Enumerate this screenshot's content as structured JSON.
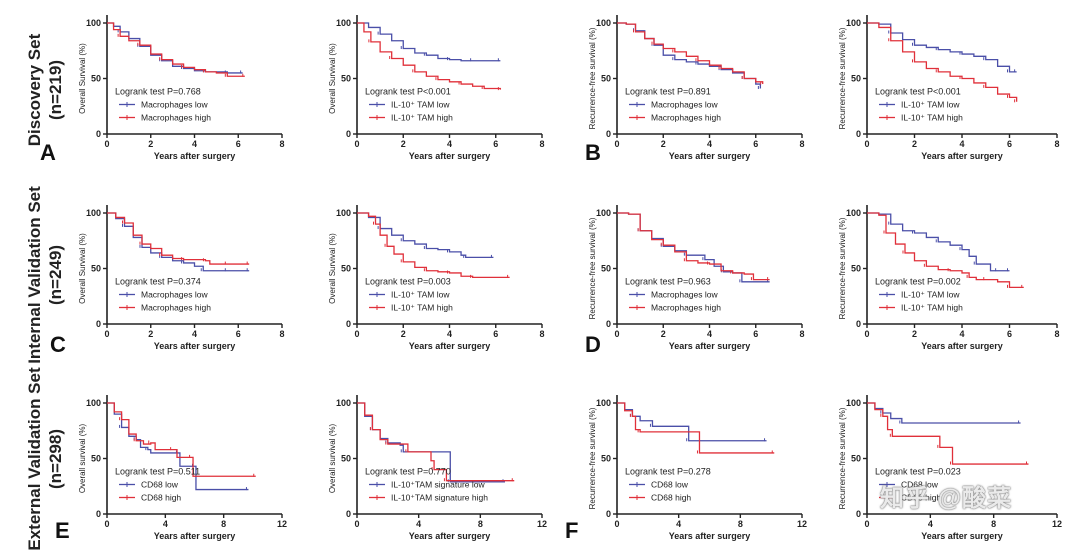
{
  "figure": {
    "row_labels": [
      {
        "line1": "Discovery Set",
        "line2": "(n=219)"
      },
      {
        "line1": "Internal Validation Set",
        "line2": "(n=249)"
      },
      {
        "line1": "External Validation Set",
        "line2": "(n=298)"
      }
    ],
    "panel_letters": [
      "A",
      "B",
      "C",
      "D",
      "E",
      "F"
    ],
    "watermark": "知乎 @酸菜",
    "colors": {
      "low": "#4a4fa8",
      "high": "#e0303a",
      "axis": "#222222"
    }
  },
  "chart_data": [
    {
      "type": "line",
      "id": "A1",
      "title": "",
      "xlabel": "Years after surgery",
      "ylabel": "Overall Survival (%)",
      "xlim": [
        0,
        8
      ],
      "xticks": [
        0,
        2,
        4,
        6,
        8
      ],
      "ylim": [
        0,
        100
      ],
      "yticks": [
        0,
        50,
        100
      ],
      "annotation": "Logrank test P=0.768",
      "series": [
        {
          "name": "Macrophages low",
          "color": "#4a4fa8",
          "x": [
            0,
            0.3,
            0.6,
            1.0,
            1.5,
            2.0,
            2.5,
            3.0,
            3.5,
            4.0,
            4.5,
            5.0,
            5.5,
            6.2
          ],
          "y": [
            100,
            97,
            92,
            86,
            79,
            71,
            66,
            61,
            59,
            57,
            56,
            56,
            55,
            55
          ]
        },
        {
          "name": "Macrophages high",
          "color": "#e0303a",
          "x": [
            0,
            0.3,
            0.6,
            1.0,
            1.5,
            2.0,
            2.5,
            3.0,
            3.5,
            4.0,
            4.5,
            5.0,
            5.5,
            6.3
          ],
          "y": [
            100,
            94,
            88,
            84,
            80,
            72,
            67,
            63,
            60,
            58,
            56,
            55,
            52,
            52
          ]
        }
      ]
    },
    {
      "type": "line",
      "id": "A2",
      "title": "",
      "xlabel": "Years after surgery",
      "ylabel": "Overall Survival (%)",
      "xlim": [
        0,
        8
      ],
      "xticks": [
        0,
        2,
        4,
        6,
        8
      ],
      "ylim": [
        0,
        100
      ],
      "yticks": [
        0,
        50,
        100
      ],
      "annotation": "Logrank test P<0.001",
      "series": [
        {
          "name": "IL-10⁺ TAM low",
          "color": "#4a4fa8",
          "x": [
            0,
            0.5,
            1.0,
            1.5,
            2.0,
            2.5,
            3.0,
            3.5,
            4.0,
            4.5,
            5.0,
            5.5,
            6.2
          ],
          "y": [
            100,
            96,
            90,
            84,
            77,
            73,
            71,
            68,
            67,
            66,
            66,
            66,
            66
          ]
        },
        {
          "name": "IL-10⁺ TAM high",
          "color": "#e0303a",
          "x": [
            0,
            0.3,
            0.6,
            1.0,
            1.5,
            2.0,
            2.5,
            3.0,
            3.5,
            4.0,
            4.5,
            5.0,
            5.5,
            6.2
          ],
          "y": [
            100,
            92,
            83,
            74,
            68,
            62,
            56,
            52,
            49,
            47,
            45,
            43,
            41,
            40
          ]
        }
      ]
    },
    {
      "type": "line",
      "id": "B1",
      "title": "",
      "xlabel": "Years after surgery",
      "ylabel": "Recurrence-free survival (%)",
      "xlim": [
        0,
        8
      ],
      "xticks": [
        0,
        2,
        4,
        6,
        8
      ],
      "ylim": [
        0,
        100
      ],
      "yticks": [
        0,
        50,
        100
      ],
      "annotation": "Logrank test P=0.891",
      "series": [
        {
          "name": "Macrophages low",
          "color": "#4a4fa8",
          "x": [
            0,
            0.4,
            0.8,
            1.2,
            1.6,
            2.0,
            2.5,
            3.0,
            3.5,
            4.0,
            4.5,
            5.0,
            5.5,
            6.0,
            6.2
          ],
          "y": [
            100,
            99,
            93,
            86,
            80,
            71,
            67,
            65,
            63,
            61,
            58,
            55,
            50,
            45,
            41
          ]
        },
        {
          "name": "Macrophages high",
          "color": "#e0303a",
          "x": [
            0,
            0.4,
            0.8,
            1.2,
            1.6,
            2.0,
            2.5,
            3.0,
            3.5,
            4.0,
            4.5,
            5.0,
            5.5,
            6.0,
            6.3
          ],
          "y": [
            100,
            99,
            92,
            86,
            81,
            77,
            74,
            70,
            66,
            62,
            59,
            56,
            50,
            47,
            45
          ]
        }
      ]
    },
    {
      "type": "line",
      "id": "B2",
      "title": "",
      "xlabel": "Years after surgery",
      "ylabel": "Recurrence-free survival (%)",
      "xlim": [
        0,
        8
      ],
      "xticks": [
        0,
        2,
        4,
        6,
        8
      ],
      "ylim": [
        0,
        100
      ],
      "yticks": [
        0,
        50,
        100
      ],
      "annotation": "Logrank test P<0.001",
      "series": [
        {
          "name": "IL-10⁺ TAM low",
          "color": "#4a4fa8",
          "x": [
            0,
            0.5,
            1.0,
            1.5,
            2.0,
            2.5,
            3.0,
            3.5,
            4.0,
            4.5,
            5.0,
            5.5,
            6.0,
            6.3
          ],
          "y": [
            100,
            99,
            91,
            85,
            80,
            78,
            76,
            74,
            72,
            70,
            67,
            61,
            56,
            56
          ]
        },
        {
          "name": "IL-10⁺ TAM high",
          "color": "#e0303a",
          "x": [
            0,
            0.5,
            1.0,
            1.5,
            2.0,
            2.5,
            3.0,
            3.5,
            4.0,
            4.5,
            5.0,
            5.5,
            6.0,
            6.3
          ],
          "y": [
            100,
            96,
            84,
            74,
            65,
            59,
            56,
            52,
            50,
            46,
            42,
            36,
            33,
            29
          ]
        }
      ]
    },
    {
      "type": "line",
      "id": "C1",
      "title": "",
      "xlabel": "Years after surgery",
      "ylabel": "Overall Survival (%)",
      "xlim": [
        0,
        8
      ],
      "xticks": [
        0,
        2,
        4,
        6,
        8
      ],
      "ylim": [
        0,
        100
      ],
      "yticks": [
        0,
        50,
        100
      ],
      "annotation": "Logrank test P=0.374",
      "series": [
        {
          "name": "Macrophages low",
          "color": "#4a4fa8",
          "x": [
            0,
            0.4,
            0.8,
            1.2,
            1.6,
            2.0,
            2.5,
            3.0,
            3.5,
            4.0,
            4.4,
            5.0,
            5.5,
            6.5
          ],
          "y": [
            100,
            95,
            88,
            78,
            69,
            64,
            60,
            57,
            55,
            52,
            48,
            48,
            48,
            48
          ]
        },
        {
          "name": "Macrophages high",
          "color": "#e0303a",
          "x": [
            0,
            0.4,
            0.8,
            1.2,
            1.6,
            2.0,
            2.5,
            3.0,
            3.5,
            4.0,
            4.5,
            4.7,
            5.5,
            6.5
          ],
          "y": [
            100,
            96,
            91,
            80,
            72,
            68,
            62,
            59,
            58,
            58,
            57,
            54,
            54,
            54
          ]
        }
      ]
    },
    {
      "type": "line",
      "id": "C2",
      "title": "",
      "xlabel": "Years after surgery",
      "ylabel": "Overall Survival (%)",
      "xlim": [
        0,
        8
      ],
      "xticks": [
        0,
        2,
        4,
        6,
        8
      ],
      "ylim": [
        0,
        100
      ],
      "yticks": [
        0,
        50,
        100
      ],
      "annotation": "Logrank test P=0.003",
      "series": [
        {
          "name": "IL-10⁺ TAM low",
          "color": "#4a4fa8",
          "x": [
            0,
            0.5,
            1.0,
            1.5,
            2.0,
            2.5,
            3.0,
            3.5,
            4.0,
            4.5,
            4.7,
            5.5,
            5.9
          ],
          "y": [
            100,
            96,
            86,
            80,
            75,
            72,
            68,
            67,
            65,
            62,
            60,
            60,
            60
          ]
        },
        {
          "name": "IL-10⁺ TAM high",
          "color": "#e0303a",
          "x": [
            0,
            0.5,
            0.8,
            1.0,
            1.3,
            1.6,
            2.0,
            2.5,
            3.0,
            3.5,
            4.0,
            4.5,
            5.0,
            6.0,
            6.6
          ],
          "y": [
            100,
            97,
            90,
            80,
            70,
            63,
            56,
            51,
            48,
            47,
            46,
            43,
            42,
            42,
            42
          ]
        }
      ]
    },
    {
      "type": "line",
      "id": "D1",
      "title": "",
      "xlabel": "Years after surgery",
      "ylabel": "Recurrence-free survival (%)",
      "xlim": [
        0,
        8
      ],
      "xticks": [
        0,
        2,
        4,
        6,
        8
      ],
      "ylim": [
        0,
        100
      ],
      "yticks": [
        0,
        50,
        100
      ],
      "annotation": "Logrank test P=0.963",
      "series": [
        {
          "name": "Macrophages low",
          "color": "#4a4fa8",
          "x": [
            0,
            0.5,
            1.0,
            1.5,
            2.0,
            2.5,
            3.0,
            3.4,
            3.8,
            4.2,
            4.6,
            5.0,
            5.4,
            6.0,
            6.6
          ],
          "y": [
            100,
            99,
            84,
            77,
            70,
            66,
            62,
            62,
            58,
            52,
            47,
            46,
            38,
            38,
            38
          ]
        },
        {
          "name": "Macrophages high",
          "color": "#e0303a",
          "x": [
            0,
            0.5,
            1.0,
            1.5,
            2.0,
            2.5,
            3.0,
            3.5,
            4.0,
            4.5,
            5.0,
            5.5,
            5.9,
            6.6
          ],
          "y": [
            100,
            99,
            84,
            76,
            71,
            65,
            57,
            55,
            54,
            48,
            46,
            45,
            40,
            40
          ]
        }
      ]
    },
    {
      "type": "line",
      "id": "D2",
      "title": "",
      "xlabel": "Years after surgery",
      "ylabel": "Recurrence-free survival (%)",
      "xlim": [
        0,
        8
      ],
      "xticks": [
        0,
        2,
        4,
        6,
        8
      ],
      "ylim": [
        0,
        100
      ],
      "yticks": [
        0,
        50,
        100
      ],
      "annotation": "Logrank test P=0.002",
      "series": [
        {
          "name": "IL-10⁺ TAM low",
          "color": "#4a4fa8",
          "x": [
            0,
            0.5,
            1.0,
            1.5,
            2.0,
            2.5,
            3.0,
            3.5,
            4.0,
            4.3,
            4.6,
            5.2,
            5.5,
            6.0
          ],
          "y": [
            100,
            99,
            90,
            84,
            82,
            78,
            74,
            71,
            67,
            61,
            54,
            48,
            48,
            48
          ]
        },
        {
          "name": "IL-10⁺ TAM high",
          "color": "#e0303a",
          "x": [
            0,
            0.5,
            0.8,
            1.2,
            1.6,
            2.0,
            2.5,
            3.0,
            3.5,
            4.0,
            4.3,
            4.6,
            5.0,
            5.5,
            6.0,
            6.6
          ],
          "y": [
            100,
            98,
            82,
            72,
            64,
            57,
            52,
            49,
            48,
            46,
            42,
            40,
            40,
            38,
            33,
            33
          ]
        }
      ]
    },
    {
      "type": "line",
      "id": "E1",
      "title": "",
      "xlabel": "Years after surgery",
      "ylabel": "Overall survival (%)",
      "xlim": [
        0,
        12
      ],
      "xticks": [
        0,
        4,
        8,
        12
      ],
      "ylim": [
        0,
        100
      ],
      "yticks": [
        0,
        50,
        100
      ],
      "annotation": "Logrank test P=0.511",
      "series": [
        {
          "name": "CD68 low",
          "color": "#4a4fa8",
          "x": [
            0,
            0.5,
            1.0,
            1.5,
            2.0,
            2.3,
            2.8,
            3.0,
            4.9,
            5.0,
            6.0,
            6.1,
            9.7
          ],
          "y": [
            100,
            90,
            78,
            70,
            67,
            60,
            58,
            55,
            55,
            43,
            43,
            22,
            22
          ]
        },
        {
          "name": "CD68 high",
          "color": "#e0303a",
          "x": [
            0,
            0.5,
            1.0,
            1.5,
            2.0,
            2.5,
            3.0,
            3.3,
            4.5,
            4.8,
            5.8,
            5.9,
            10.2
          ],
          "y": [
            100,
            92,
            85,
            72,
            66,
            63,
            64,
            58,
            58,
            51,
            51,
            34,
            34
          ]
        }
      ]
    },
    {
      "type": "line",
      "id": "E2",
      "title": "",
      "xlabel": "Years after surgery",
      "ylabel": "Overall survival (%)",
      "xlim": [
        0,
        12
      ],
      "xticks": [
        0,
        4,
        8,
        12
      ],
      "ylim": [
        0,
        100
      ],
      "yticks": [
        0,
        50,
        100
      ],
      "annotation": "Logrank test P=0.770",
      "series": [
        {
          "name": "IL-10⁺TAM signature low",
          "color": "#4a4fa8",
          "x": [
            0,
            0.5,
            1.0,
            1.5,
            2.0,
            2.8,
            3.0,
            6.0,
            6.05,
            9.6
          ],
          "y": [
            100,
            88,
            76,
            68,
            64,
            62,
            56,
            56,
            29,
            29
          ]
        },
        {
          "name": "IL-10⁺TAM signature high",
          "color": "#e0303a",
          "x": [
            0,
            0.5,
            1.0,
            1.5,
            2.0,
            3.0,
            3.3,
            4.8,
            5.0,
            5.7,
            5.8,
            10.2
          ],
          "y": [
            100,
            89,
            76,
            67,
            63,
            63,
            56,
            48,
            40,
            40,
            30,
            30
          ]
        }
      ]
    },
    {
      "type": "line",
      "id": "F1",
      "title": "",
      "xlabel": "Years after surgery",
      "ylabel": "Recurrence-free survival (%)",
      "xlim": [
        0,
        12
      ],
      "xticks": [
        0,
        4,
        8,
        12
      ],
      "ylim": [
        0,
        100
      ],
      "yticks": [
        0,
        50,
        100
      ],
      "annotation": "Logrank test P=0.278",
      "series": [
        {
          "name": "CD68 low",
          "color": "#4a4fa8",
          "x": [
            0,
            0.5,
            1.0,
            1.5,
            2.3,
            4.6,
            4.65,
            9.7
          ],
          "y": [
            100,
            94,
            88,
            84,
            79,
            79,
            66,
            66
          ]
        },
        {
          "name": "CD68 high",
          "color": "#e0303a",
          "x": [
            0,
            0.5,
            1.0,
            1.2,
            1.5,
            5.3,
            5.35,
            10.2
          ],
          "y": [
            100,
            93,
            88,
            76,
            74,
            74,
            55,
            55
          ]
        }
      ]
    },
    {
      "type": "line",
      "id": "F2",
      "title": "",
      "xlabel": "Years after surgery",
      "ylabel": "Recurrence-free survival (%)",
      "xlim": [
        0,
        12
      ],
      "xticks": [
        0,
        4,
        8,
        12
      ],
      "ylim": [
        0,
        100
      ],
      "yticks": [
        0,
        50,
        100
      ],
      "annotation": "Logrank test P=0.023",
      "series": [
        {
          "name": "CD68 low",
          "color": "#4a4fa8",
          "x": [
            0,
            0.5,
            1.0,
            1.5,
            2.2,
            9.7
          ],
          "y": [
            100,
            95,
            91,
            86,
            82,
            82
          ]
        },
        {
          "name": "CD68 high",
          "color": "#e0303a",
          "x": [
            0,
            0.5,
            1.0,
            1.3,
            1.6,
            4.5,
            4.6,
            5.3,
            5.4,
            10.2
          ],
          "y": [
            100,
            94,
            88,
            76,
            70,
            70,
            60,
            60,
            45,
            45
          ]
        }
      ]
    }
  ]
}
